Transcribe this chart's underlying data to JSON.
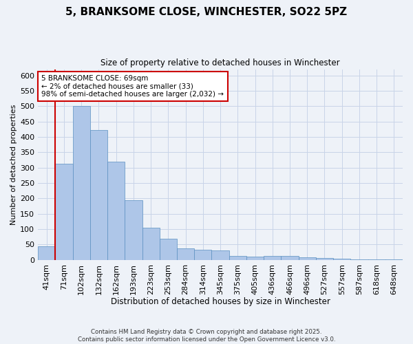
{
  "title_line1": "5, BRANKSOME CLOSE, WINCHESTER, SO22 5PZ",
  "title_line2": "Size of property relative to detached houses in Winchester",
  "xlabel": "Distribution of detached houses by size in Winchester",
  "ylabel": "Number of detached properties",
  "categories": [
    "41sqm",
    "71sqm",
    "102sqm",
    "132sqm",
    "162sqm",
    "193sqm",
    "223sqm",
    "253sqm",
    "284sqm",
    "314sqm",
    "345sqm",
    "375sqm",
    "405sqm",
    "436sqm",
    "466sqm",
    "496sqm",
    "527sqm",
    "557sqm",
    "587sqm",
    "618sqm",
    "648sqm"
  ],
  "values": [
    45,
    312,
    500,
    423,
    319,
    194,
    104,
    70,
    37,
    34,
    30,
    13,
    11,
    14,
    12,
    9,
    6,
    4,
    2,
    1,
    1
  ],
  "bar_color": "#aec6e8",
  "bar_edge_color": "#5a8fc0",
  "subject_line_color": "#cc0000",
  "annotation_text": "5 BRANKSOME CLOSE: 69sqm\n← 2% of detached houses are smaller (33)\n98% of semi-detached houses are larger (2,032) →",
  "annotation_box_color": "#ffffff",
  "annotation_box_edge_color": "#cc0000",
  "background_color": "#eef2f8",
  "grid_color": "#c8d4e8",
  "footer_text": "Contains HM Land Registry data © Crown copyright and database right 2025.\nContains public sector information licensed under the Open Government Licence v3.0.",
  "ylim": [
    0,
    620
  ],
  "yticks": [
    0,
    50,
    100,
    150,
    200,
    250,
    300,
    350,
    400,
    450,
    500,
    550,
    600
  ]
}
